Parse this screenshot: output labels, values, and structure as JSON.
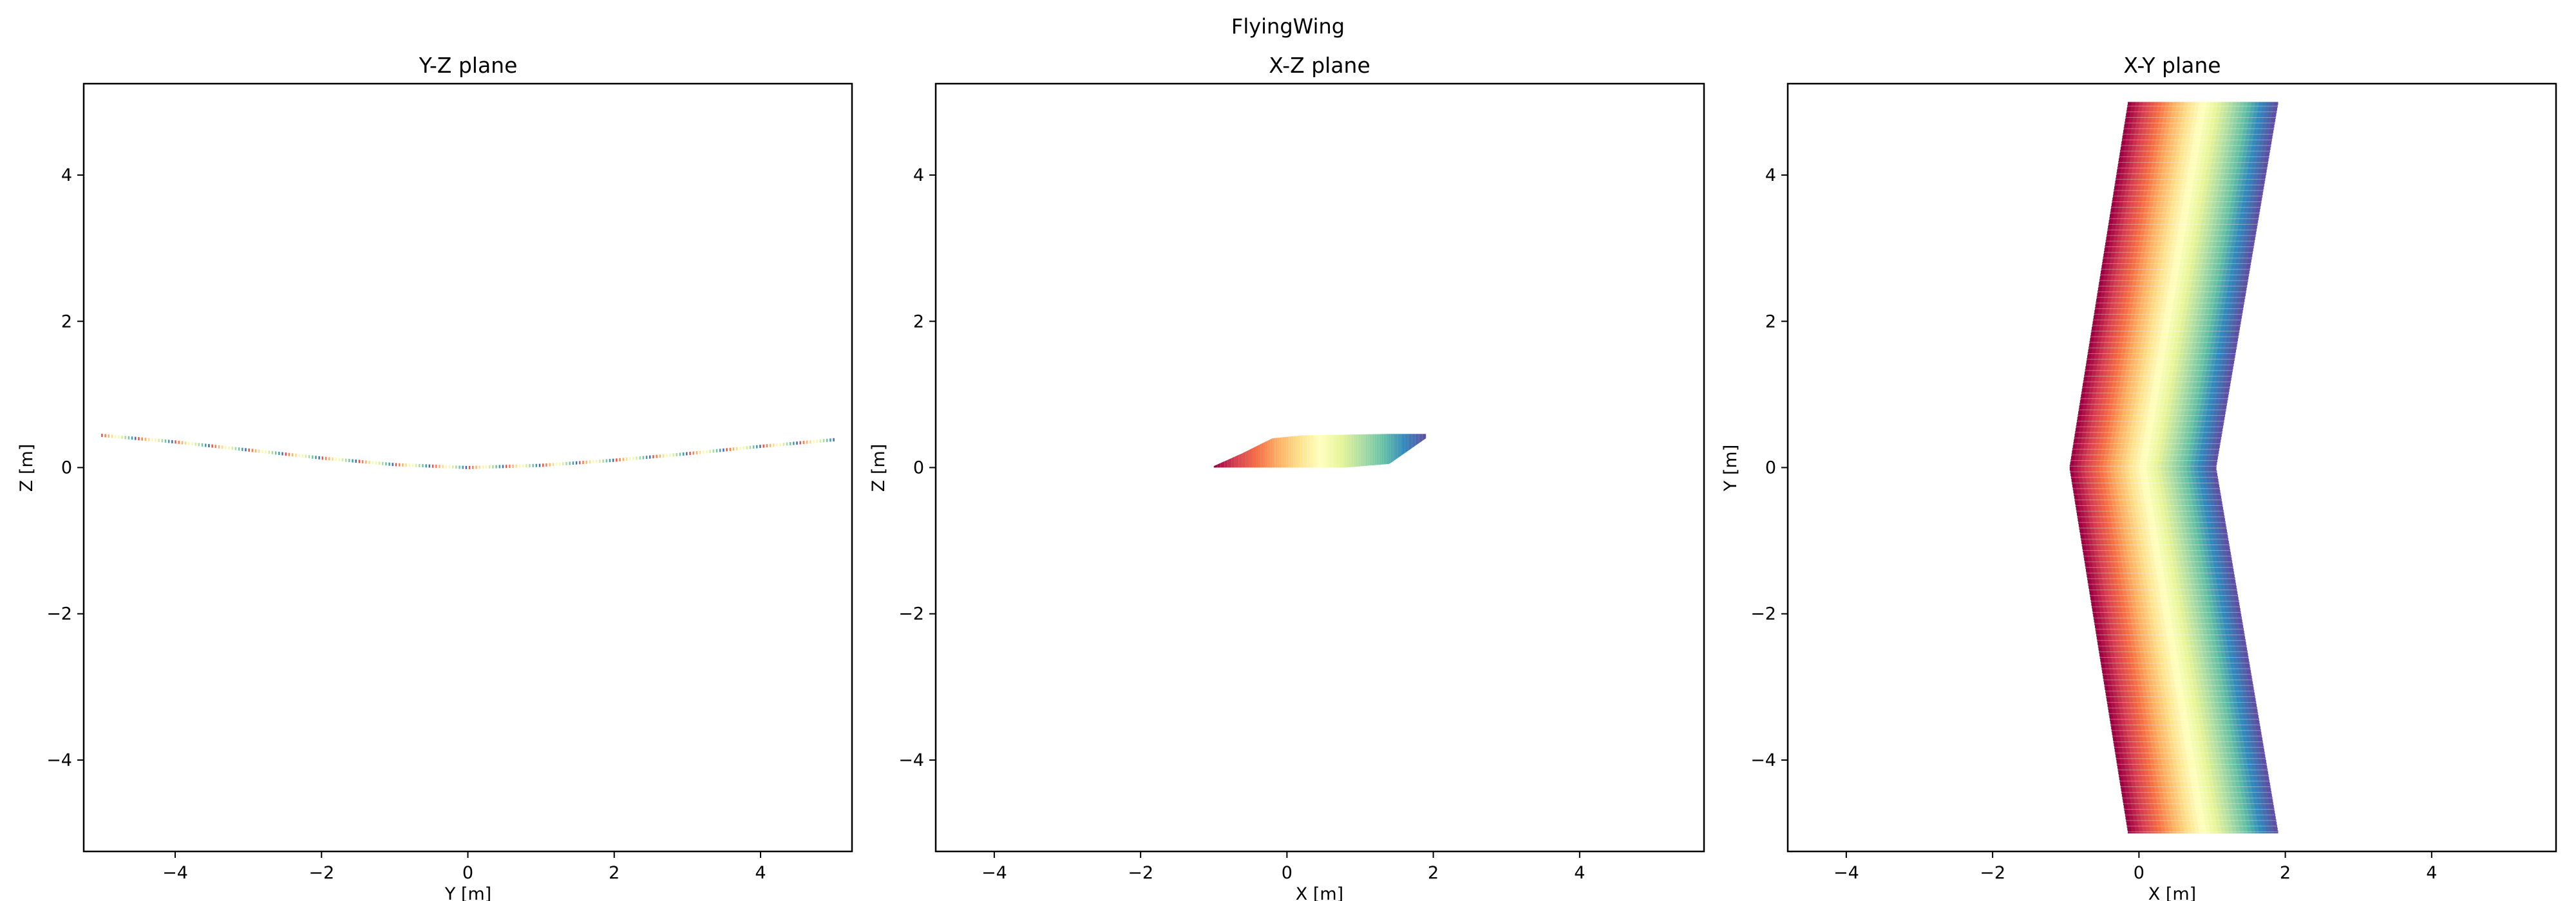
{
  "figure": {
    "suptitle": "FlyingWing"
  },
  "colors": {
    "spectral": [
      "#9e0142",
      "#d53e4f",
      "#f46d43",
      "#fdae61",
      "#fee08b",
      "#ffffbf",
      "#e6f598",
      "#abdda4",
      "#66c2a5",
      "#3288bd",
      "#5e4fa2"
    ]
  },
  "chart_data": [
    {
      "type": "line",
      "title": "Y-Z plane",
      "xlabel": "Y [m]",
      "ylabel": "Z [m]",
      "xlim": [
        -5.25,
        5.25
      ],
      "ylim": [
        -5.25,
        5.25
      ],
      "xticks": [
        -4,
        -2,
        0,
        2,
        4
      ],
      "yticks": [
        -4,
        -2,
        0,
        2,
        4
      ],
      "grid": false,
      "series": [
        {
          "x": [
            -5.0,
            -4.0,
            -3.0,
            -2.0,
            -1.0,
            0.0,
            1.0,
            2.0,
            3.0,
            4.0,
            5.0
          ],
          "y": [
            0.44,
            0.35,
            0.24,
            0.13,
            0.04,
            0.0,
            0.03,
            0.1,
            0.19,
            0.29,
            0.38
          ]
        }
      ]
    },
    {
      "type": "area",
      "title": "X-Z plane",
      "xlabel": "X [m]",
      "ylabel": "Z [m]",
      "xlim": [
        -4.8,
        5.7
      ],
      "ylim": [
        -5.25,
        5.25
      ],
      "xticks": [
        -4,
        -2,
        0,
        2,
        4
      ],
      "yticks": [
        -4,
        -2,
        0,
        2,
        4
      ],
      "grid": false,
      "wing_profile": {
        "upper": {
          "x": [
            -1.0,
            -0.6,
            -0.2,
            0.2,
            0.8,
            1.4,
            1.9
          ],
          "y": [
            0.02,
            0.2,
            0.4,
            0.44,
            0.45,
            0.46,
            0.46
          ]
        },
        "lower": {
          "x": [
            -1.0,
            -0.6,
            -0.2,
            0.2,
            0.8,
            1.4,
            1.9
          ],
          "y": [
            0.0,
            0.0,
            0.0,
            0.0,
            0.0,
            0.05,
            0.4
          ]
        }
      }
    },
    {
      "type": "area",
      "title": "X-Y plane",
      "xlabel": "X [m]",
      "ylabel": "Y [m]",
      "xlim": [
        -4.8,
        5.7
      ],
      "ylim": [
        -5.25,
        5.25
      ],
      "xticks": [
        -4,
        -2,
        0,
        2,
        4
      ],
      "yticks": [
        -4,
        -2,
        0,
        2,
        4
      ],
      "grid": false,
      "planform": {
        "span_y": [
          -5.0,
          5.0
        ],
        "root_leading_edge_x": -0.95,
        "root_trailing_edge_x": 1.05,
        "tip_leading_edge_x": -0.15,
        "tip_trailing_edge_x": 1.9
      }
    }
  ],
  "ticks_minus": "−"
}
